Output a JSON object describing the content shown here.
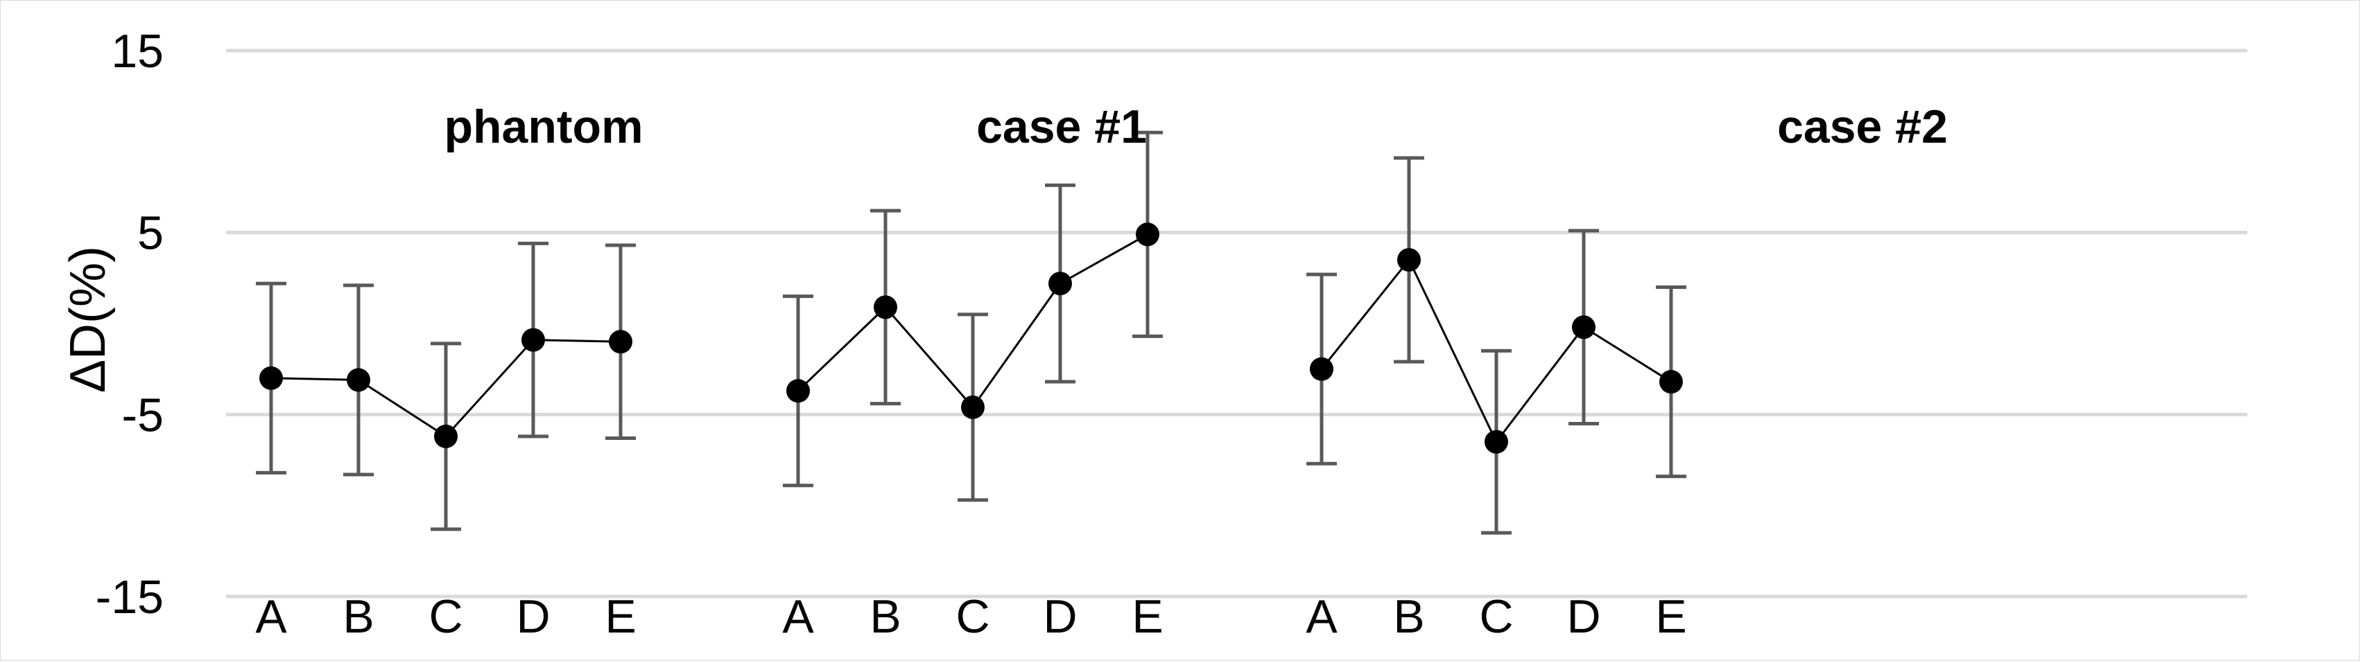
{
  "chart_data": {
    "type": "line",
    "ylabel": "ΔD(%)",
    "ylim": [
      -15,
      15
    ],
    "yticks": [
      "15",
      "5",
      "-5",
      "-15"
    ],
    "ytick_values": [
      15,
      5,
      -5,
      -15
    ],
    "gridlines": [
      15,
      5,
      -5,
      -15
    ],
    "grid": true,
    "colors": {
      "line": "#000000",
      "marker": "#000000",
      "errorbar": "#595959",
      "grid": "#d9d9d9"
    },
    "groups": [
      {
        "title": "phantom",
        "categories": [
          "A",
          "B",
          "C",
          "D",
          "E"
        ],
        "values": [
          -3.0,
          -3.1,
          -6.2,
          -0.9,
          -1.0
        ],
        "errors": [
          5.2,
          5.2,
          5.1,
          5.3,
          5.3
        ]
      },
      {
        "title": "case #1",
        "categories": [
          "A",
          "B",
          "C",
          "D",
          "E"
        ],
        "values": [
          -3.7,
          0.9,
          -4.6,
          2.2,
          4.9
        ],
        "errors": [
          5.2,
          5.3,
          5.1,
          5.4,
          5.6
        ]
      },
      {
        "title": "case #2",
        "categories": [
          "A",
          "B",
          "C",
          "D",
          "E"
        ],
        "values": [
          -2.5,
          3.5,
          -6.5,
          -0.2,
          -3.2
        ],
        "errors": [
          5.2,
          5.6,
          5.0,
          5.3,
          5.2
        ]
      }
    ]
  }
}
